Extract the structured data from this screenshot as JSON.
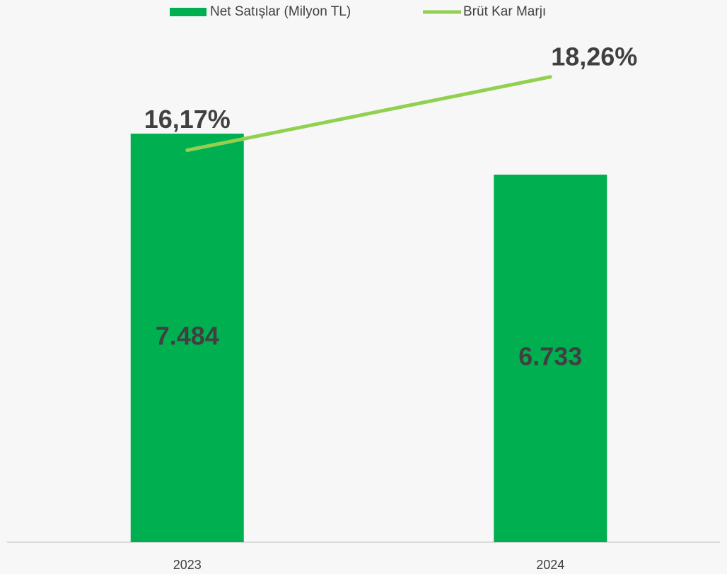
{
  "chart_data": {
    "type": "bar_line",
    "categories": [
      "2023",
      "2024"
    ],
    "series": [
      {
        "name": "Net Satışlar (Milyon TL)",
        "type": "bar",
        "color": "#00b050",
        "values": [
          7484,
          6733
        ],
        "value_labels": [
          "7.484",
          "6.733"
        ]
      },
      {
        "name": "Brüt Kar Marjı",
        "type": "line",
        "axis": "y2",
        "color": "#92d050",
        "values": [
          16.17,
          18.26
        ],
        "value_labels": [
          "16,17%",
          "18,26%"
        ]
      }
    ],
    "ylim": [
      0,
      9000
    ],
    "y2lim": [
      5,
      19
    ],
    "legend": "top"
  }
}
